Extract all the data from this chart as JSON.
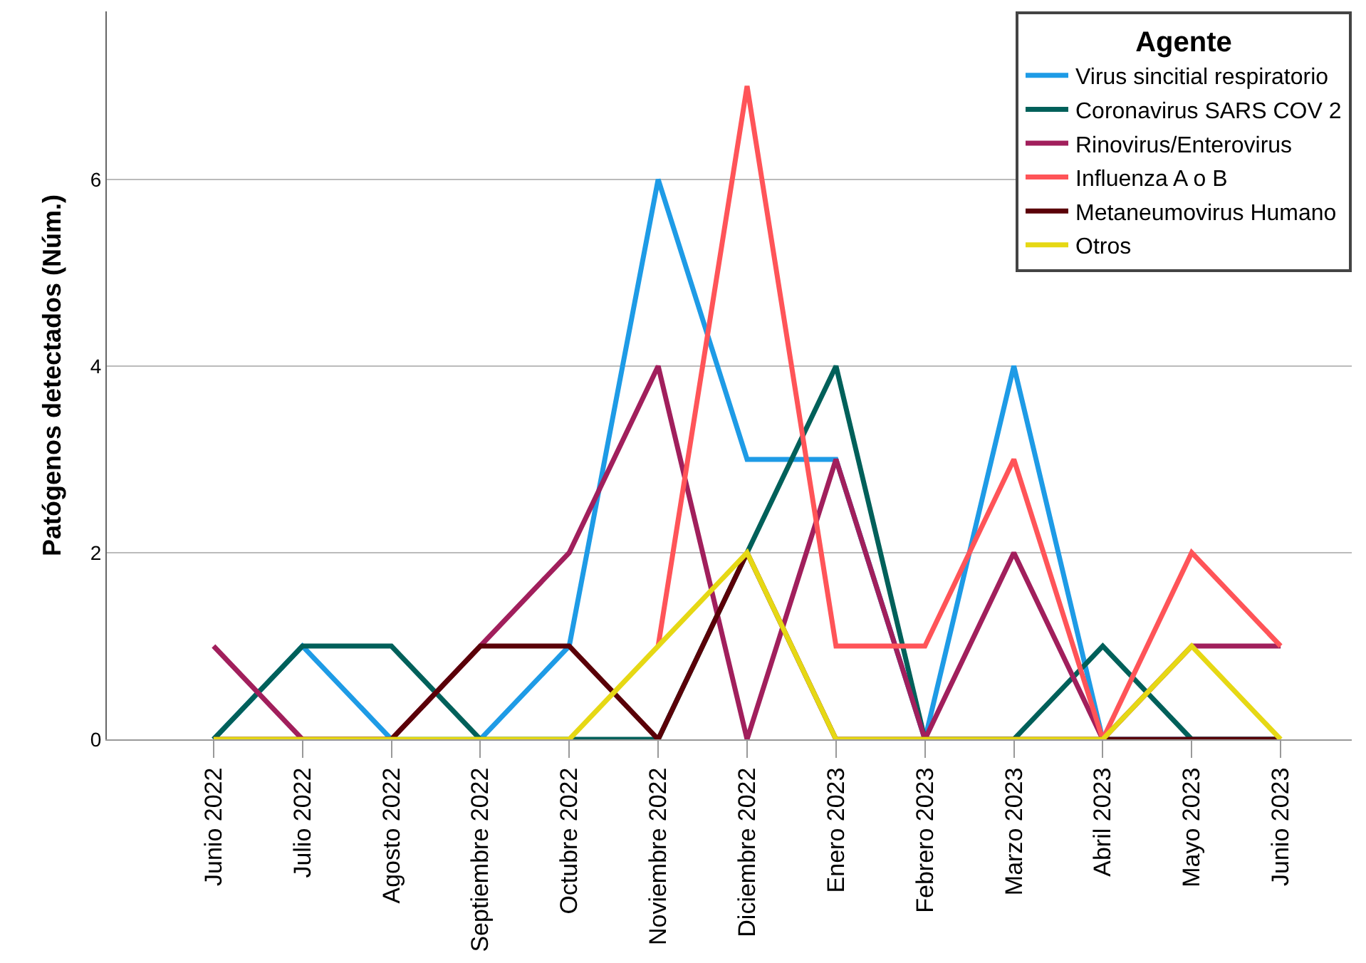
{
  "chart_data": {
    "type": "line",
    "ylabel": "Patógenos detectados (Núm.)",
    "legend_title": "Agente",
    "categories": [
      "Junio 2022",
      "Julio 2022",
      "Agosto 2022",
      "Septiembre 2022",
      "Octubre 2022",
      "Noviembre 2022",
      "Diciembre 2022",
      "Enero 2023",
      "Febrero 2023",
      "Marzo 2023",
      "Abril 2023",
      "Mayo 2023",
      "Junio 2023"
    ],
    "series": [
      {
        "name": "Virus sincitial respiratorio",
        "color": "#1e9be6",
        "values": [
          0,
          1,
          0,
          0,
          1,
          6,
          3,
          3,
          0,
          4,
          0,
          0,
          0
        ]
      },
      {
        "name": "Coronavirus SARS COV 2",
        "color": "#00605a",
        "values": [
          0,
          1,
          1,
          0,
          0,
          0,
          2,
          4,
          0,
          0,
          1,
          0,
          0
        ]
      },
      {
        "name": "Rinovirus/Enterovirus",
        "color": "#a11f5c",
        "values": [
          1,
          0,
          0,
          1,
          2,
          4,
          0,
          3,
          0,
          2,
          0,
          1,
          1
        ]
      },
      {
        "name": "Influenza A o B",
        "color": "#ff5458",
        "values": [
          null,
          null,
          null,
          null,
          null,
          1,
          7,
          1,
          1,
          3,
          0,
          2,
          1
        ]
      },
      {
        "name": "Metaneumovirus Humano",
        "color": "#5a0008",
        "values": [
          0,
          0,
          0,
          1,
          1,
          0,
          2,
          0,
          0,
          0,
          0,
          0,
          0
        ]
      },
      {
        "name": "Otros",
        "color": "#e6d814",
        "values": [
          0,
          0,
          0,
          0,
          0,
          1,
          2,
          0,
          0,
          0,
          0,
          1,
          0
        ]
      }
    ],
    "ylim": [
      0,
      7.8
    ],
    "yticks": [
      0,
      2,
      4,
      6
    ],
    "grid": "y",
    "legend": "top right",
    "marker": "none",
    "line_style": "solid"
  }
}
